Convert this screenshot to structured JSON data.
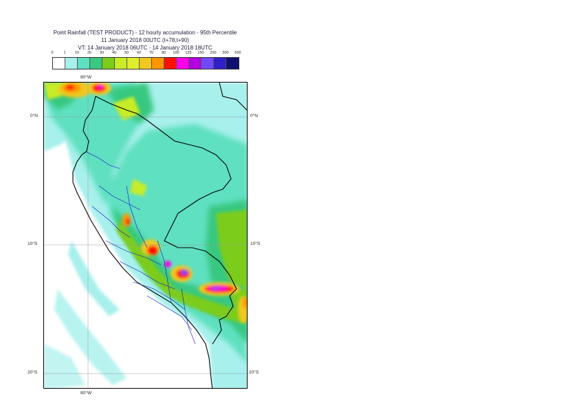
{
  "title": {
    "line1": "Point Rainfall (TEST PRODUCT) - 12 hourly accumulation - 95th Percentile",
    "line2": "11 January 2018 00UTC (t+78,t+90)",
    "line3": "VT: 14 January 2018 06UTC - 14 January 2018 18UTC"
  },
  "legend": {
    "labels": [
      "0",
      "1",
      "10",
      "20",
      "30",
      "40",
      "50",
      "60",
      "70",
      "80",
      "100",
      "125",
      "150",
      "200",
      "300",
      "500"
    ],
    "colors": [
      "#ffffff",
      "#a8f0ec",
      "#5ee0c0",
      "#38c880",
      "#7ccc1c",
      "#c8ec28",
      "#e0ec30",
      "#f0c820",
      "#ff9600",
      "#ff1000",
      "#ff00e8",
      "#b400e0",
      "#7048ff",
      "#3020c8",
      "#10106e"
    ]
  },
  "map": {
    "lat_labels_left": [
      "0°N",
      "10°S",
      "20°S"
    ],
    "lat_labels_right": [
      "0°N",
      "10°S",
      "20°S"
    ],
    "lon_label_top": "80°W",
    "lon_label_bottom": "80°W"
  }
}
